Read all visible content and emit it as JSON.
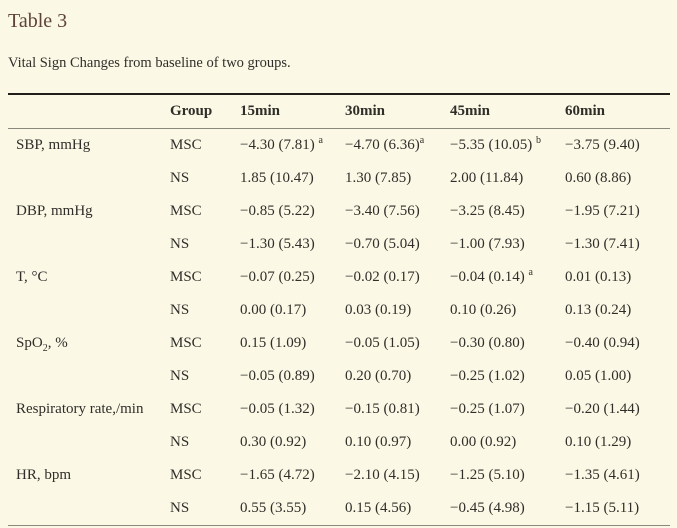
{
  "meta": {
    "title": "Table 3",
    "caption": "Vital Sign Changes from baseline of two groups."
  },
  "table": {
    "columns": [
      "",
      "Group",
      "15min",
      "30min",
      "45min",
      "60min"
    ],
    "rows": [
      {
        "label": [
          {
            "t": "SBP, mmHg"
          }
        ],
        "group": "MSC",
        "cells": [
          [
            {
              "t": "−4.30 (7.81) "
            },
            {
              "t": "a",
              "sup": true
            }
          ],
          [
            {
              "t": "−4.70 (6.36)"
            },
            {
              "t": "a",
              "sup": true
            }
          ],
          [
            {
              "t": "−5.35 (10.05) "
            },
            {
              "t": "b",
              "sup": true
            }
          ],
          [
            {
              "t": "−3.75 (9.40)"
            }
          ]
        ]
      },
      {
        "label": [],
        "group": "NS",
        "cells": [
          [
            {
              "t": "1.85 (10.47)"
            }
          ],
          [
            {
              "t": "1.30 (7.85)"
            }
          ],
          [
            {
              "t": "2.00 (11.84)"
            }
          ],
          [
            {
              "t": "0.60 (8.86)"
            }
          ]
        ]
      },
      {
        "label": [
          {
            "t": "DBP, mmHg"
          }
        ],
        "group": "MSC",
        "cells": [
          [
            {
              "t": "−0.85 (5.22)"
            }
          ],
          [
            {
              "t": "−3.40 (7.56)"
            }
          ],
          [
            {
              "t": "−3.25 (8.45)"
            }
          ],
          [
            {
              "t": "−1.95 (7.21)"
            }
          ]
        ]
      },
      {
        "label": [],
        "group": "NS",
        "cells": [
          [
            {
              "t": "−1.30 (5.43)"
            }
          ],
          [
            {
              "t": "−0.70 (5.04)"
            }
          ],
          [
            {
              "t": "−1.00 (7.93)"
            }
          ],
          [
            {
              "t": "−1.30 (7.41)"
            }
          ]
        ]
      },
      {
        "label": [
          {
            "t": "T, °C"
          }
        ],
        "group": "MSC",
        "cells": [
          [
            {
              "t": "−0.07 (0.25)"
            }
          ],
          [
            {
              "t": "−0.02 (0.17)"
            }
          ],
          [
            {
              "t": "−0.04 (0.14) "
            },
            {
              "t": "a",
              "sup": true
            }
          ],
          [
            {
              "t": "0.01 (0.13)"
            }
          ]
        ]
      },
      {
        "label": [],
        "group": "NS",
        "cells": [
          [
            {
              "t": "0.00 (0.17)"
            }
          ],
          [
            {
              "t": "0.03 (0.19)"
            }
          ],
          [
            {
              "t": "0.10 (0.26)"
            }
          ],
          [
            {
              "t": "0.13 (0.24)"
            }
          ]
        ]
      },
      {
        "label": [
          {
            "t": "SpO"
          },
          {
            "t": "2",
            "sub": true
          },
          {
            "t": ", %"
          }
        ],
        "group": "MSC",
        "cells": [
          [
            {
              "t": "0.15 (1.09)"
            }
          ],
          [
            {
              "t": "−0.05 (1.05)"
            }
          ],
          [
            {
              "t": "−0.30 (0.80)"
            }
          ],
          [
            {
              "t": "−0.40 (0.94)"
            }
          ]
        ]
      },
      {
        "label": [],
        "group": "NS",
        "cells": [
          [
            {
              "t": "−0.05 (0.89)"
            }
          ],
          [
            {
              "t": "0.20 (0.70)"
            }
          ],
          [
            {
              "t": "−0.25 (1.02)"
            }
          ],
          [
            {
              "t": "0.05 (1.00)"
            }
          ]
        ]
      },
      {
        "label": [
          {
            "t": "Respiratory rate,/min"
          }
        ],
        "group": "MSC",
        "cells": [
          [
            {
              "t": "−0.05 (1.32)"
            }
          ],
          [
            {
              "t": "−0.15 (0.81)"
            }
          ],
          [
            {
              "t": "−0.25 (1.07)"
            }
          ],
          [
            {
              "t": "−0.20 (1.44)"
            }
          ]
        ]
      },
      {
        "label": [],
        "group": "NS",
        "cells": [
          [
            {
              "t": "0.30 (0.92)"
            }
          ],
          [
            {
              "t": "0.10 (0.97)"
            }
          ],
          [
            {
              "t": "0.00 (0.92)"
            }
          ],
          [
            {
              "t": "0.10 (1.29)"
            }
          ]
        ]
      },
      {
        "label": [
          {
            "t": "HR, bpm"
          }
        ],
        "group": "MSC",
        "cells": [
          [
            {
              "t": "−1.65 (4.72)"
            }
          ],
          [
            {
              "t": "−2.10 (4.15)"
            }
          ],
          [
            {
              "t": "−1.25 (5.10)"
            }
          ],
          [
            {
              "t": "−1.35 (4.61)"
            }
          ]
        ]
      },
      {
        "label": [],
        "group": "NS",
        "cells": [
          [
            {
              "t": "0.55 (3.55)"
            }
          ],
          [
            {
              "t": "0.15 (4.56)"
            }
          ],
          [
            {
              "t": "−0.45 (4.98)"
            }
          ],
          [
            {
              "t": "−1.15 (5.11)"
            }
          ]
        ]
      }
    ]
  },
  "colors": {
    "background": "#fbf9e6",
    "title_brown": "#5f4339",
    "body_text": "#302e29",
    "rule_dark": "#1f1e1a",
    "rule_gray": "#8a897d"
  }
}
